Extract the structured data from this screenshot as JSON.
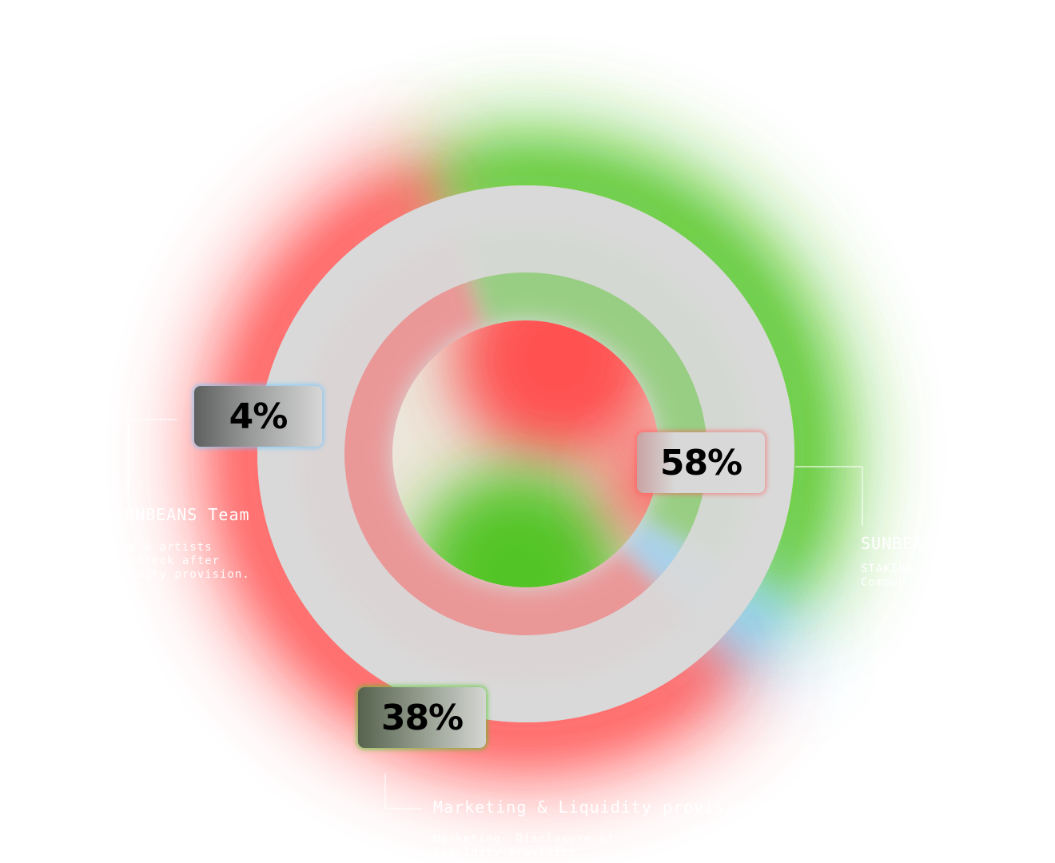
{
  "chart_data": {
    "type": "pie",
    "variant": "donut",
    "slices": [
      {
        "label": "SUNBEANS",
        "value": 58,
        "display": "58%",
        "color": "#ff4a4a",
        "description": "STAKING\nCommun"
      },
      {
        "label": "Marketing & Liquidity provision",
        "value": 38,
        "display": "38%",
        "color": "#4cc21c",
        "description": "Marketing. Disclosure of\nliquidity provision..."
      },
      {
        "label": "SUNBEANS Team",
        "value": 4,
        "display": "4%",
        "color": "#6ec8ff",
        "description": "ice & artists\nk unlock after\nquidity provision."
      }
    ],
    "title": "",
    "legend": "callouts"
  },
  "colors": {
    "ring": "#d9d9d9",
    "background": "#ffffff",
    "callout_text": "#ffffff"
  }
}
